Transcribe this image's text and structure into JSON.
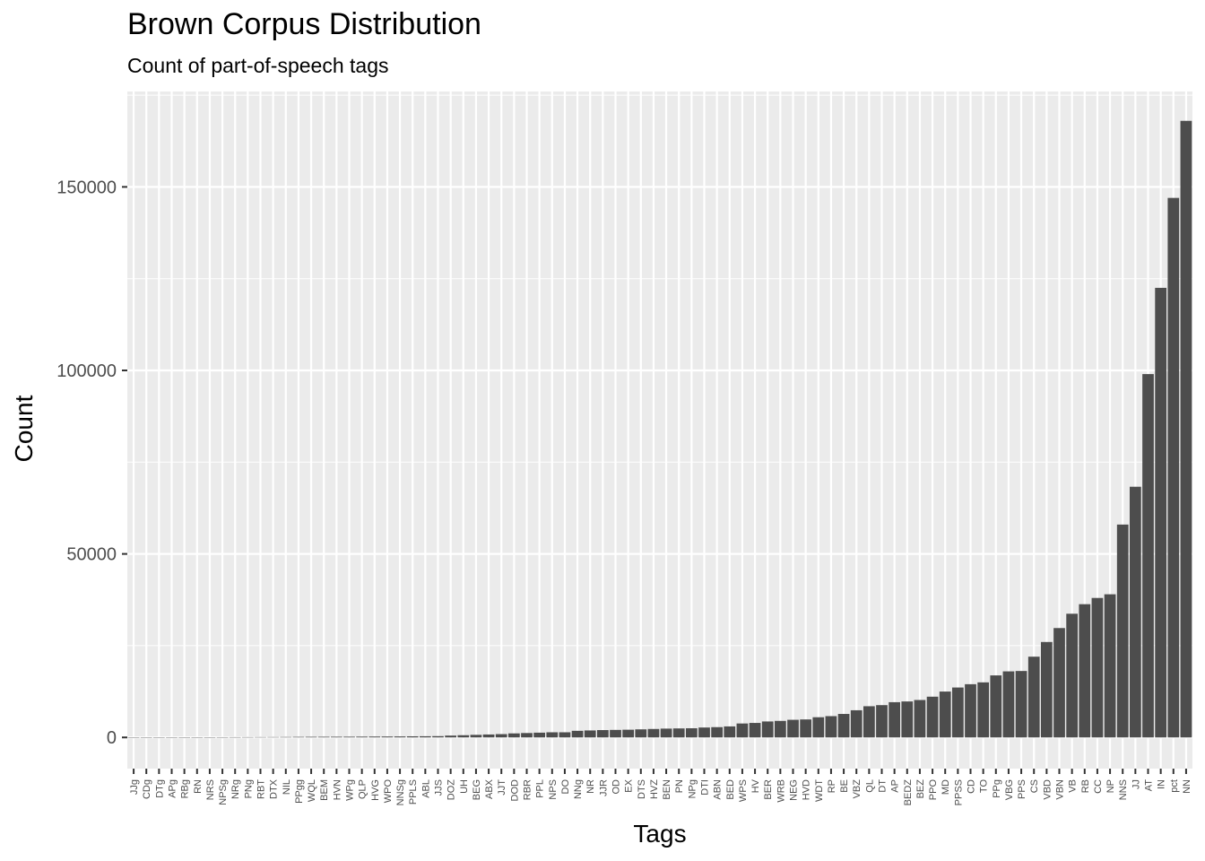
{
  "chart_data": {
    "type": "bar",
    "title": "Brown Corpus Distribution",
    "subtitle": "Count of part-of-speech tags",
    "xlabel": "Tags",
    "ylabel": "Count",
    "ylim": [
      -8500,
      176000
    ],
    "yticks": [
      0,
      50000,
      100000,
      150000
    ],
    "ytick_labels": [
      "0",
      "50000",
      "100000",
      "150000"
    ],
    "grid": true,
    "bar_color": "#4d4d4d",
    "panel_color": "#ebebeb",
    "categories": [
      "JJg",
      "CDg",
      "DTg",
      "APg",
      "RBg",
      "RN",
      "NRS",
      "NPSg",
      "NRg",
      "PNg",
      "RBT",
      "DTX",
      "NIL",
      "PPgg",
      "WQL",
      "BEM",
      "HVN",
      "WPg",
      "QLP",
      "HVG",
      "WPO",
      "NNSg",
      "PPLS",
      "ABL",
      "JJS",
      "DOZ",
      "UH",
      "BEG",
      "ABX",
      "JJT",
      "DOD",
      "RBR",
      "PPL",
      "NPS",
      "DO",
      "NNg",
      "NR",
      "JJR",
      "OD",
      "EX",
      "DTS",
      "HVZ",
      "BEN",
      "PN",
      "NPg",
      "DTI",
      "ABN",
      "BED",
      "WPS",
      "HV",
      "BER",
      "WRB",
      "NEG",
      "HVD",
      "WDT",
      "RP",
      "BE",
      "VBZ",
      "QL",
      "DT",
      "AP",
      "BEDZ",
      "BEZ",
      "PPO",
      "MD",
      "PPSS",
      "CD",
      "TO",
      "PPg",
      "VBG",
      "PPS",
      "CS",
      "VBD",
      "VBN",
      "VB",
      "RB",
      "CC",
      "NP",
      "NNS",
      "JJ",
      "AT",
      "IN",
      "pct",
      "NN"
    ],
    "values": [
      1,
      2,
      2,
      5,
      8,
      10,
      10,
      60,
      70,
      80,
      90,
      100,
      120,
      150,
      170,
      180,
      190,
      200,
      220,
      240,
      250,
      270,
      300,
      320,
      350,
      500,
      600,
      700,
      800,
      900,
      1100,
      1200,
      1300,
      1400,
      1400,
      1800,
      1900,
      2000,
      2050,
      2100,
      2200,
      2300,
      2400,
      2450,
      2500,
      2700,
      2800,
      3000,
      3800,
      3950,
      4350,
      4500,
      4800,
      4900,
      5500,
      5800,
      6400,
      7400,
      8500,
      8800,
      9600,
      9800,
      10200,
      11100,
      12500,
      13600,
      14500,
      15000,
      16900,
      18000,
      18100,
      22000,
      26000,
      29800,
      33700,
      36300,
      38000,
      39000,
      58000,
      68300,
      99000,
      122500,
      147000,
      168000
    ]
  }
}
